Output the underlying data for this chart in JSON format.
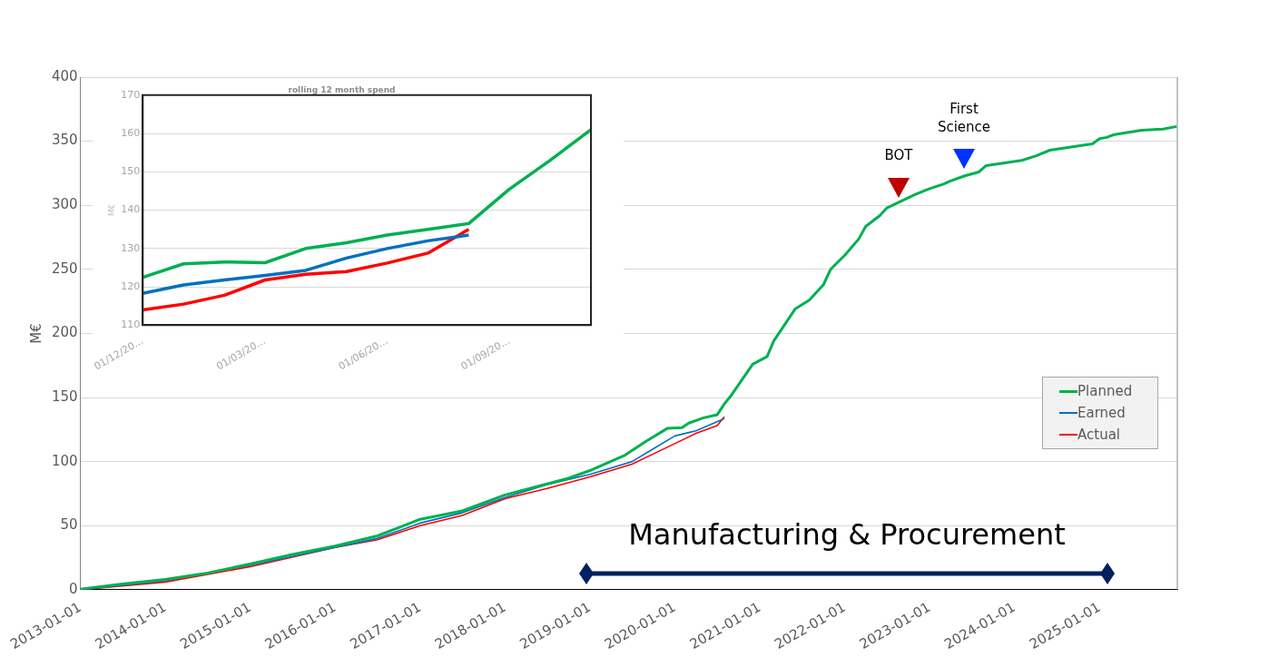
{
  "chart_data": [
    {
      "type": "line",
      "ylabel": "M€",
      "xlim": [
        "2013-01-01",
        "2025-12-01"
      ],
      "xticks": [
        "2013-01-01",
        "2014-01-01",
        "2015-01-01",
        "2016-01-01",
        "2017-01-01",
        "2018-01-01",
        "2019-01-01",
        "2020-01-01",
        "2021-01-01",
        "2022-01-01",
        "2023-01-01",
        "2024-01-01",
        "2025-01-01"
      ],
      "ylim": [
        0,
        400
      ],
      "yticks": [
        0,
        50,
        100,
        150,
        200,
        250,
        300,
        350,
        400
      ],
      "grid": "y",
      "legend": "right",
      "series": [
        {
          "name": "Planned",
          "color": "#00b050",
          "x": [
            "2013-01",
            "2013-07",
            "2014-01",
            "2014-07",
            "2015-01",
            "2015-07",
            "2016-01",
            "2016-07",
            "2016-10",
            "2017-01",
            "2017-07",
            "2018-01",
            "2018-10",
            "2019-01",
            "2019-06",
            "2019-09",
            "2019-12",
            "2020-02",
            "2020-03",
            "2020-05",
            "2020-07",
            "2020-08",
            "2020-09",
            "2020-12",
            "2021-02",
            "2021-03",
            "2021-06",
            "2021-08",
            "2021-10",
            "2021-11",
            "2022-01",
            "2022-03",
            "2022-04",
            "2022-06",
            "2022-07",
            "2022-11",
            "2023-01",
            "2023-03",
            "2023-04",
            "2023-06",
            "2023-08",
            "2023-09",
            "2024-02",
            "2024-04",
            "2024-06",
            "2024-12",
            "2025-01",
            "2025-02",
            "2025-03",
            "2025-07",
            "2025-10",
            "2025-11-28"
          ],
          "values": [
            0.5,
            4.5,
            8,
            13,
            20,
            27.5,
            34,
            42,
            48.5,
            55,
            61.5,
            74,
            87,
            93,
            105,
            116,
            126,
            126.5,
            130,
            134,
            136.5,
            145,
            152,
            176,
            182,
            194,
            219,
            226,
            238,
            250,
            261,
            273.5,
            283.5,
            292,
            298,
            308.5,
            313,
            316.5,
            319,
            323,
            326,
            331,
            335,
            338.5,
            343,
            348,
            352,
            353,
            355,
            358.5,
            359.5,
            361.5
          ]
        },
        {
          "name": "Earned",
          "color": "#0070c0",
          "x": [
            "2013-01",
            "2014-01",
            "2015-01",
            "2016-01",
            "2016-07",
            "2017-01",
            "2017-07",
            "2018-01",
            "2018-07",
            "2019-01",
            "2019-07",
            "2019-10",
            "2020-01",
            "2020-04",
            "2020-08"
          ],
          "values": [
            0,
            7,
            19,
            33,
            40,
            52,
            60,
            72,
            82,
            90,
            100,
            110,
            120,
            124,
            133.5
          ]
        },
        {
          "name": "Actual",
          "color": "#ff0000",
          "x": [
            "2013-01",
            "2014-01",
            "2015-01",
            "2016-01",
            "2016-07",
            "2017-01",
            "2017-07",
            "2018-01",
            "2018-07",
            "2019-01",
            "2019-07",
            "2019-10",
            "2020-01",
            "2020-04",
            "2020-07",
            "2020-08"
          ],
          "values": [
            0,
            6,
            18,
            33,
            39,
            50,
            58,
            71,
            79,
            88,
            98,
            106,
            114,
            122,
            128,
            135
          ]
        }
      ],
      "annotations": [
        "BOT",
        "First Science",
        "Manufacturing & Procurement"
      ]
    },
    {
      "type": "line",
      "title": "rolling 12 month spend",
      "ylabel": "M€",
      "categories": [
        "01/12/20…",
        null,
        null,
        "01/03/20…",
        null,
        null,
        "01/06/20…",
        null,
        null,
        "01/09/20…",
        null,
        null
      ],
      "ylim": [
        110,
        170
      ],
      "yticks": [
        110,
        120,
        130,
        140,
        150,
        160,
        170
      ],
      "grid": "y",
      "series": [
        {
          "color": "#00b050",
          "values": [
            122.5,
            126,
            126.5,
            126.3,
            130,
            131.5,
            133.5,
            135,
            136.5,
            145.5,
            153,
            161
          ]
        },
        {
          "color": "#0070c0",
          "values": [
            118.3,
            120.5,
            121.8,
            123,
            124.3,
            127.5,
            130,
            132,
            133.5,
            null,
            null,
            null
          ]
        },
        {
          "color": "#ff0000",
          "values": [
            114,
            115.5,
            117.8,
            121.8,
            123.3,
            124,
            126.2,
            128.8,
            135,
            null,
            null,
            null
          ]
        }
      ]
    }
  ]
}
